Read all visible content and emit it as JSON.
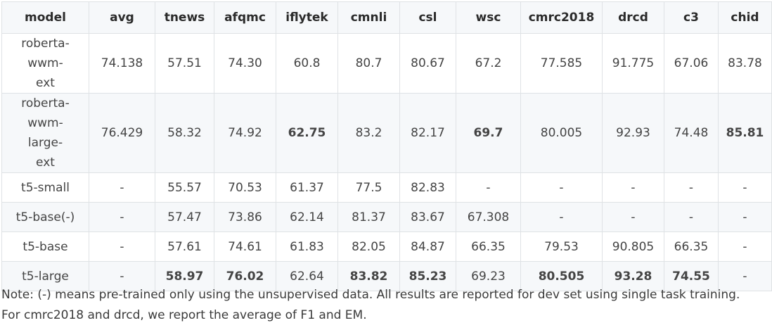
{
  "table": {
    "headers": [
      "model",
      "avg",
      "tnews",
      "afqmc",
      "iflytek",
      "cmnli",
      "csl",
      "wsc",
      "cmrc2018",
      "drcd",
      "c3",
      "chid"
    ],
    "rows": [
      {
        "cells": [
          "roberta-wwm-ext",
          "74.138",
          "57.51",
          "74.30",
          "60.8",
          "80.7",
          "80.67",
          "67.2",
          "77.585",
          "91.775",
          "67.06",
          "83.78"
        ],
        "bold": []
      },
      {
        "cells": [
          "roberta-wwm-large-ext",
          "76.429",
          "58.32",
          "74.92",
          "62.75",
          "83.2",
          "82.17",
          "69.7",
          "80.005",
          "92.93",
          "74.48",
          "85.81"
        ],
        "bold": [
          4,
          7,
          11
        ]
      },
      {
        "cells": [
          "t5-small",
          "-",
          "55.57",
          "70.53",
          "61.37",
          "77.5",
          "82.83",
          "-",
          "-",
          "-",
          "-",
          "-"
        ],
        "bold": []
      },
      {
        "cells": [
          "t5-base(-)",
          "-",
          "57.47",
          "73.86",
          "62.14",
          "81.37",
          "83.67",
          "67.308",
          "-",
          "-",
          "-",
          "-"
        ],
        "bold": []
      },
      {
        "cells": [
          "t5-base",
          "-",
          "57.61",
          "74.61",
          "61.83",
          "82.05",
          "84.87",
          "66.35",
          "79.53",
          "90.805",
          "66.35",
          "-"
        ],
        "bold": []
      },
      {
        "cells": [
          "t5-large",
          "-",
          "58.97",
          "76.02",
          "62.64",
          "83.82",
          "85.23",
          "69.23",
          "80.505",
          "93.28",
          "74.55",
          "-"
        ],
        "bold": [
          2,
          3,
          5,
          6,
          8,
          9,
          10
        ]
      }
    ]
  },
  "note": "Note: (-) means pre-trained only using the unsupervised data. All results are reported for dev set using single task training. For cmrc2018 and drcd, we report the average of F1 and EM."
}
